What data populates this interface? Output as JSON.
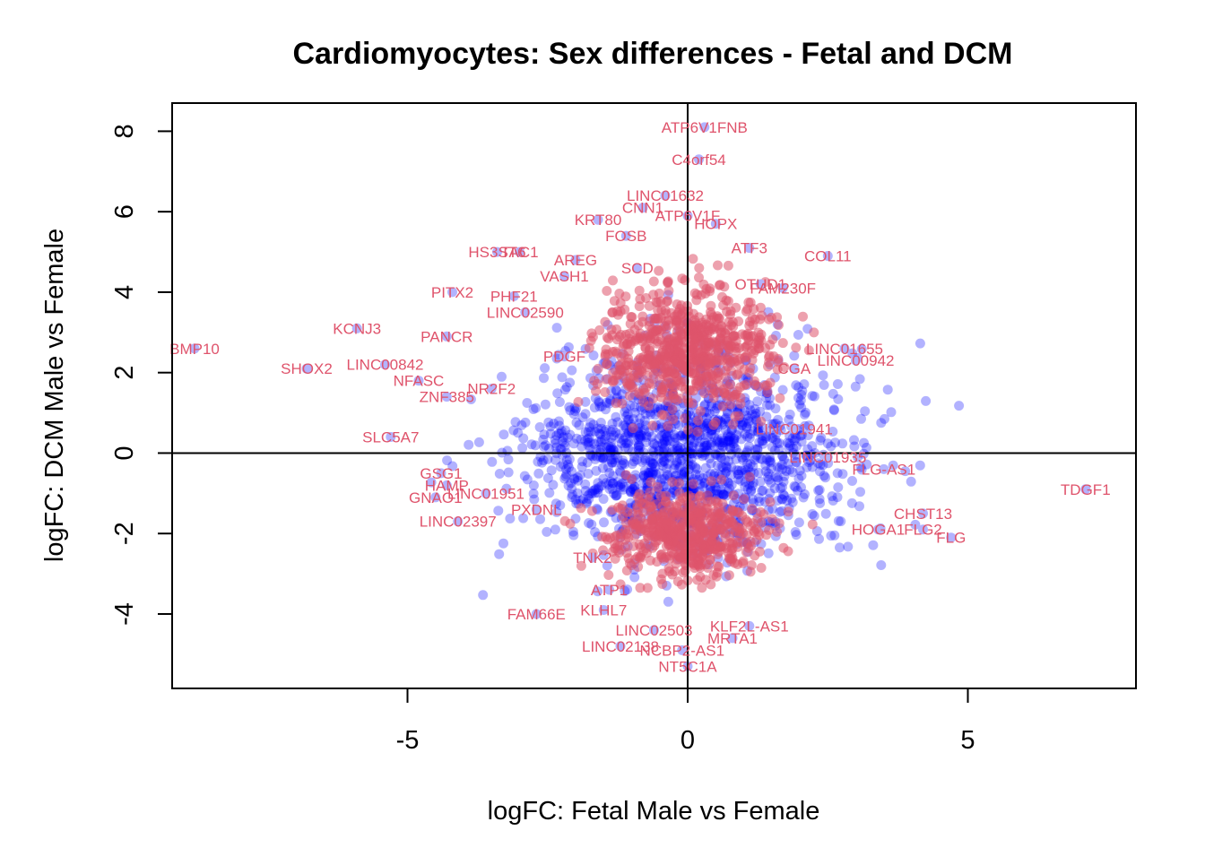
{
  "chart_data": {
    "type": "scatter",
    "title": "Cardiomyocytes: Sex differences - Fetal and DCM",
    "xlabel": "logFC: Fetal Male vs Female",
    "ylabel": "logFC: DCM Male vs Female",
    "xlim": [
      -9.2,
      8.0
    ],
    "ylim": [
      -5.85,
      8.7
    ],
    "xticks": [
      -5,
      0,
      5
    ],
    "xtick_labels": [
      "-5",
      "0",
      "5"
    ],
    "yticks": [
      -4,
      -2,
      0,
      2,
      4,
      6,
      8
    ],
    "ytick_labels": [
      "-4",
      "-2",
      "0",
      "2",
      "4",
      "6",
      "8"
    ],
    "reference_lines": {
      "x": 0,
      "y": 0
    },
    "colors": {
      "points": "#0000ff",
      "points_faint": "#b3b3ff",
      "labels": "#df536b",
      "axis": "#000000"
    },
    "point_clouds": [
      {
        "name": "background genes",
        "cx": 0.0,
        "cy": 0.0,
        "sx": 1.4,
        "sy": 1.2,
        "count": 1400,
        "color": "#0000ff"
      },
      {
        "name": "upper labelled cluster",
        "cx": 0.0,
        "cy": 2.6,
        "sx": 0.75,
        "sy": 0.75,
        "count": 700,
        "color": "#df536b"
      },
      {
        "name": "lower labelled cluster",
        "cx": 0.0,
        "cy": -2.0,
        "sx": 0.65,
        "sy": 0.55,
        "count": 550,
        "color": "#df536b"
      }
    ],
    "labeled_genes": [
      {
        "label": "ATP6V1FNB",
        "x": 0.3,
        "y": 8.1
      },
      {
        "label": "C4orf54",
        "x": 0.2,
        "y": 7.3
      },
      {
        "label": "LINC01632",
        "x": -0.4,
        "y": 6.4
      },
      {
        "label": "CNN1",
        "x": -0.8,
        "y": 6.1
      },
      {
        "label": "KRT80",
        "x": -1.6,
        "y": 5.8
      },
      {
        "label": "ATP6V1F",
        "x": 0.0,
        "y": 5.9
      },
      {
        "label": "HOPX",
        "x": 0.5,
        "y": 5.7
      },
      {
        "label": "FOSB",
        "x": -1.1,
        "y": 5.4
      },
      {
        "label": "ATF3",
        "x": 1.1,
        "y": 5.1
      },
      {
        "label": "COL11",
        "x": 2.5,
        "y": 4.9
      },
      {
        "label": "HS3ST6",
        "x": -3.4,
        "y": 5.0
      },
      {
        "label": "TAC1",
        "x": -3.0,
        "y": 5.0
      },
      {
        "label": "AREG",
        "x": -2.0,
        "y": 4.8
      },
      {
        "label": "SCD",
        "x": -0.9,
        "y": 4.6
      },
      {
        "label": "VASH1",
        "x": -2.2,
        "y": 4.4
      },
      {
        "label": "FAM230F",
        "x": 1.7,
        "y": 4.1
      },
      {
        "label": "OTUD1",
        "x": 1.3,
        "y": 4.2
      },
      {
        "label": "PITX2",
        "x": -4.2,
        "y": 4.0
      },
      {
        "label": "PHF21",
        "x": -3.1,
        "y": 3.9
      },
      {
        "label": "LINC02590",
        "x": -2.9,
        "y": 3.5
      },
      {
        "label": "KCNJ3",
        "x": -5.9,
        "y": 3.1
      },
      {
        "label": "PANCR",
        "x": -4.3,
        "y": 2.9
      },
      {
        "label": "BMP10",
        "x": -8.8,
        "y": 2.6
      },
      {
        "label": "LINC01655",
        "x": 2.8,
        "y": 2.6
      },
      {
        "label": "LINC00942",
        "x": 3.0,
        "y": 2.3
      },
      {
        "label": "CGA",
        "x": 1.9,
        "y": 2.1
      },
      {
        "label": "SHOX2",
        "x": -6.8,
        "y": 2.1
      },
      {
        "label": "LINC00842",
        "x": -5.4,
        "y": 2.2
      },
      {
        "label": "NFASC",
        "x": -4.8,
        "y": 1.8
      },
      {
        "label": "PDGF",
        "x": -2.2,
        "y": 2.4
      },
      {
        "label": "NR2F2",
        "x": -3.5,
        "y": 1.6
      },
      {
        "label": "ZNF385",
        "x": -4.3,
        "y": 1.4
      },
      {
        "label": "SLC5A7",
        "x": -5.3,
        "y": 0.4
      },
      {
        "label": "LINC01941",
        "x": 1.9,
        "y": 0.6
      },
      {
        "label": "LINC01935",
        "x": 2.5,
        "y": -0.1
      },
      {
        "label": "FLG-AS1",
        "x": 3.5,
        "y": -0.4
      },
      {
        "label": "TDGF1",
        "x": 7.1,
        "y": -0.9
      },
      {
        "label": "CHST13",
        "x": 4.2,
        "y": -1.5
      },
      {
        "label": "HOGA1",
        "x": 3.4,
        "y": -1.9
      },
      {
        "label": "FLG2",
        "x": 4.2,
        "y": -1.9
      },
      {
        "label": "FLG",
        "x": 4.7,
        "y": -2.1
      },
      {
        "label": "HAMP",
        "x": -4.3,
        "y": -0.8
      },
      {
        "label": "GSG1",
        "x": -4.4,
        "y": -0.5
      },
      {
        "label": "GNAO1",
        "x": -4.5,
        "y": -1.1
      },
      {
        "label": "LINC01951",
        "x": -3.6,
        "y": -1.0
      },
      {
        "label": "PXDNL",
        "x": -2.7,
        "y": -1.4
      },
      {
        "label": "LINC02397",
        "x": -4.1,
        "y": -1.7
      },
      {
        "label": "TNK2",
        "x": -1.7,
        "y": -2.6
      },
      {
        "label": "ATP1",
        "x": -1.4,
        "y": -3.4
      },
      {
        "label": "KLHL7",
        "x": -1.5,
        "y": -3.9
      },
      {
        "label": "FAM66E",
        "x": -2.7,
        "y": -4.0
      },
      {
        "label": "LINC02503",
        "x": -0.6,
        "y": -4.4
      },
      {
        "label": "KLF2L-AS1",
        "x": 1.1,
        "y": -4.3
      },
      {
        "label": "MRTA1",
        "x": 0.8,
        "y": -4.6
      },
      {
        "label": "LINC02138",
        "x": -1.2,
        "y": -4.8
      },
      {
        "label": "NCBP2-AS1",
        "x": -0.1,
        "y": -4.9
      },
      {
        "label": "NT5C1A",
        "x": 0.0,
        "y": -5.3
      }
    ]
  }
}
